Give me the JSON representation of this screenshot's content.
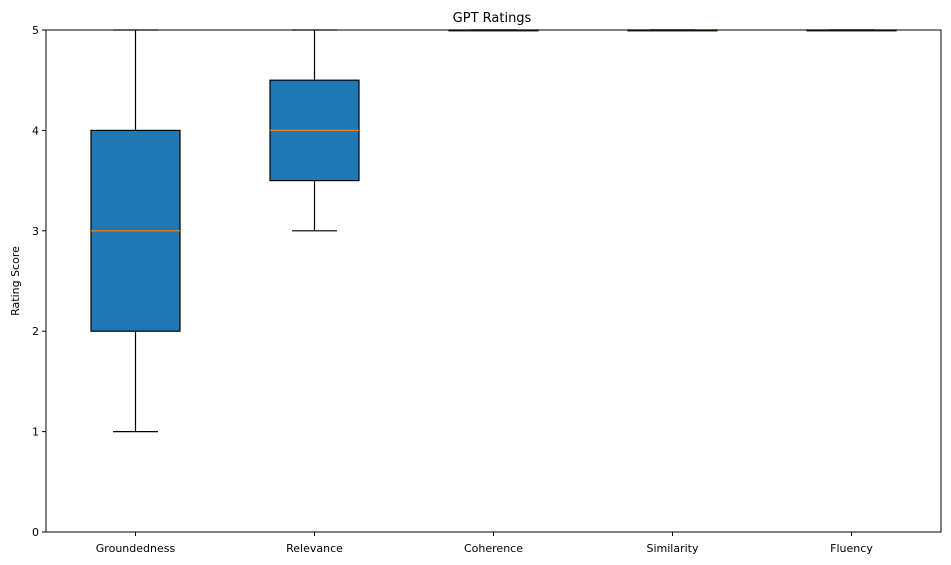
{
  "chart_data": {
    "type": "box",
    "title": "GPT Ratings",
    "xlabel": "",
    "ylabel": "Rating Score",
    "ylim": [
      0,
      5
    ],
    "yticks": [
      0,
      1,
      2,
      3,
      4,
      5
    ],
    "categories": [
      "Groundedness",
      "Relevance",
      "Coherence",
      "Similarity",
      "Fluency"
    ],
    "boxes": [
      {
        "category": "Groundedness",
        "whisker_low": 1,
        "q1": 2,
        "median": 3,
        "q3": 4,
        "whisker_high": 5
      },
      {
        "category": "Relevance",
        "whisker_low": 3,
        "q1": 3.5,
        "median": 4,
        "q3": 4.5,
        "whisker_high": 5
      },
      {
        "category": "Coherence",
        "whisker_low": 5,
        "q1": 5,
        "median": 5,
        "q3": 5,
        "whisker_high": 5
      },
      {
        "category": "Similarity",
        "whisker_low": 5,
        "q1": 5,
        "median": 5,
        "q3": 5,
        "whisker_high": 5
      },
      {
        "category": "Fluency",
        "whisker_low": 5,
        "q1": 5,
        "median": 5,
        "q3": 5,
        "whisker_high": 5
      }
    ],
    "colors": {
      "box_fill": "#1f77b4",
      "median": "#ff7f0e",
      "edge": "#000000"
    },
    "grid": false,
    "legend": "none"
  }
}
